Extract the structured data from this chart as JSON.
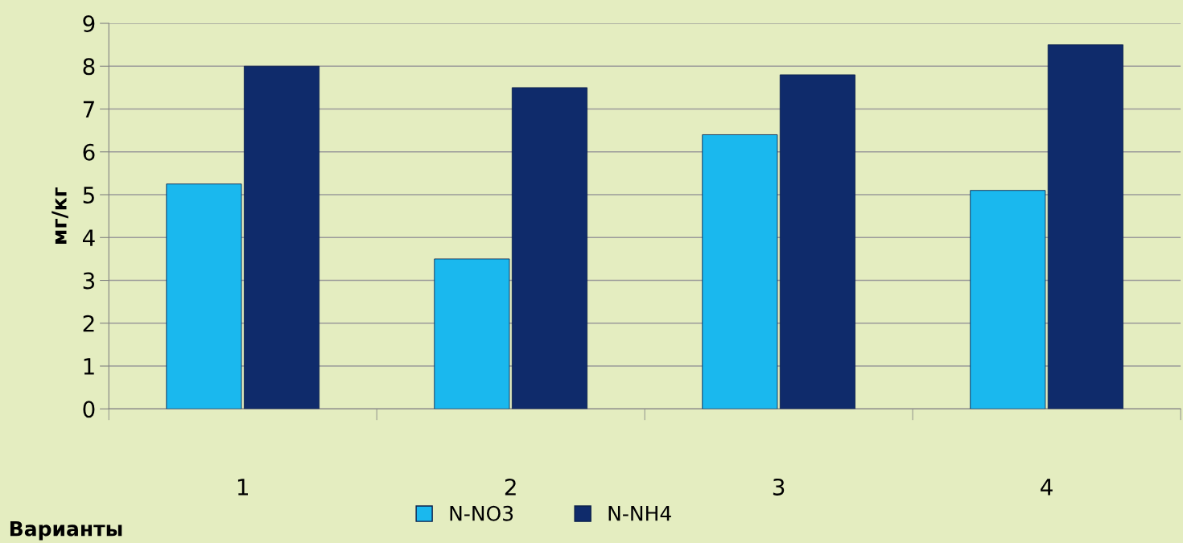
{
  "chart_data": {
    "type": "bar",
    "xlabel": "Варианты",
    "ylabel": "мг/кг",
    "categories": [
      "1",
      "2",
      "3",
      "4"
    ],
    "series": [
      {
        "name": "N-NO3",
        "color": "#1ab8ee",
        "values": [
          5.25,
          3.5,
          6.4,
          5.1
        ]
      },
      {
        "name": "N-NH4",
        "color": "#0f2b6b",
        "values": [
          8.0,
          7.5,
          7.8,
          8.5
        ]
      }
    ],
    "ylim": [
      0,
      9
    ],
    "yticks": [
      0,
      1,
      2,
      3,
      4,
      5,
      6,
      7,
      8,
      9
    ],
    "grid": "y",
    "legend": "bottom"
  }
}
